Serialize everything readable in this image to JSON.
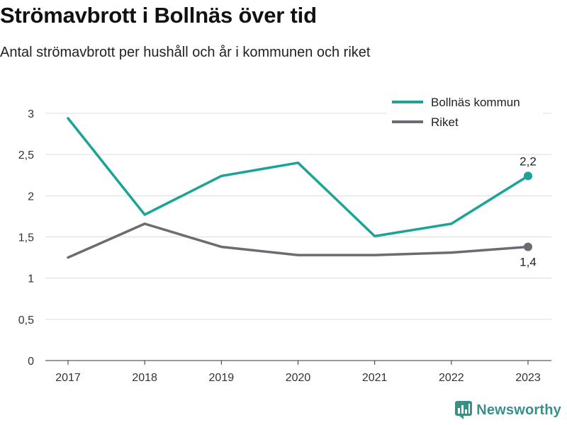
{
  "title": "Strömavbrott i Bollnäs över tid",
  "subtitle": "Antal strömavbrott per hushåll och år i kommunen och riket",
  "brand": {
    "name": "Newsworthy",
    "icon": "newsworthy-logo-icon"
  },
  "chart_data": {
    "type": "line",
    "categories": [
      "2017",
      "2018",
      "2019",
      "2020",
      "2021",
      "2022",
      "2023"
    ],
    "yticks": [
      "0",
      "0,5",
      "1",
      "1,5",
      "2",
      "2,5",
      "3"
    ],
    "ylim": [
      0,
      3
    ],
    "grid": true,
    "legend_position": "top-right",
    "series": [
      {
        "name": "Bollnäs kommun",
        "color": "#1aa396",
        "values": [
          2.94,
          1.77,
          2.24,
          2.4,
          1.51,
          1.66,
          2.24
        ],
        "end_label": "2,2"
      },
      {
        "name": "Riket",
        "color": "#6b6b72",
        "values": [
          1.25,
          1.66,
          1.38,
          1.28,
          1.28,
          1.31,
          1.38
        ],
        "end_label": "1,4"
      }
    ]
  }
}
